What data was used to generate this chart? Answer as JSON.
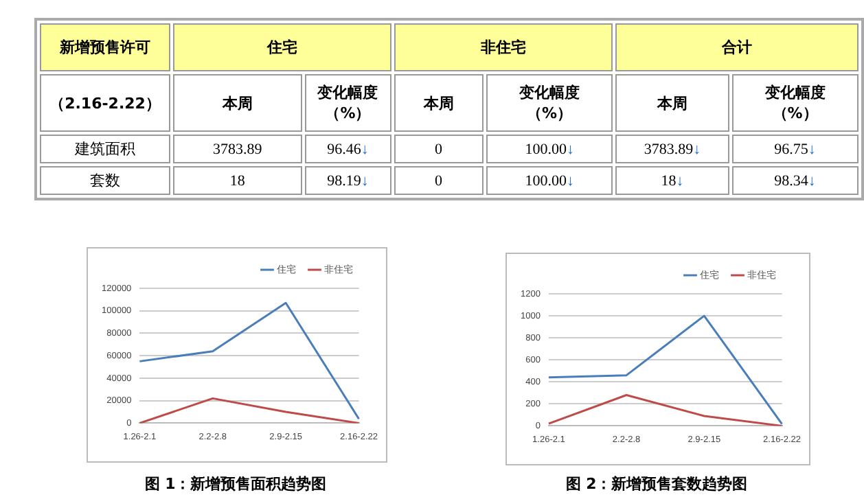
{
  "chart_data": [
    {
      "type": "other",
      "annotations": [
        "新增预售许可",
        "住宅",
        "非住宅",
        "合计",
        "（2.16-2.22）",
        "本周",
        "变化幅度（%）",
        "本周",
        "变化幅度（%）",
        "本周",
        "变化幅度（%）",
        "建筑面积",
        "3783.89",
        "96.46↓",
        "0",
        "100.00↓",
        "3783.89↓",
        "96.75↓",
        "套数",
        "18",
        "98.19↓",
        "0",
        "100.00↓",
        "18↓",
        "98.34↓"
      ]
    },
    {
      "type": "line",
      "title": "图 1：新增预售面积趋势图",
      "categories": [
        "1.26-2.1",
        "2.2-2.8",
        "2.9-2.15",
        "2.16-2.22"
      ],
      "series": [
        {
          "name": "住宅",
          "color": "#4a7ebb",
          "values": [
            55000,
            64000,
            107000,
            3783.89
          ]
        },
        {
          "name": "非住宅",
          "color": "#be4b48",
          "values": [
            0,
            22000,
            10000,
            0
          ]
        }
      ],
      "ylim": [
        0,
        120000
      ],
      "yticks": [
        0,
        20000,
        40000,
        60000,
        80000,
        100000,
        120000
      ],
      "grid": "y",
      "legend": "top right",
      "marker": "none"
    },
    {
      "type": "line",
      "title": "图 2：新增预售套数趋势图",
      "categories": [
        "1.26-2.1",
        "2.2-2.8",
        "2.9-2.15",
        "2.16-2.22"
      ],
      "series": [
        {
          "name": "住宅",
          "color": "#4a7ebb",
          "values": [
            440,
            460,
            1000,
            18
          ]
        },
        {
          "name": "非住宅",
          "color": "#be4b48",
          "values": [
            20,
            280,
            90,
            0
          ]
        }
      ],
      "ylim": [
        0,
        1200
      ],
      "yticks": [
        0,
        200,
        400,
        600,
        800,
        1000,
        1200
      ],
      "grid": "y",
      "legend": "top right",
      "marker": "none"
    }
  ]
}
